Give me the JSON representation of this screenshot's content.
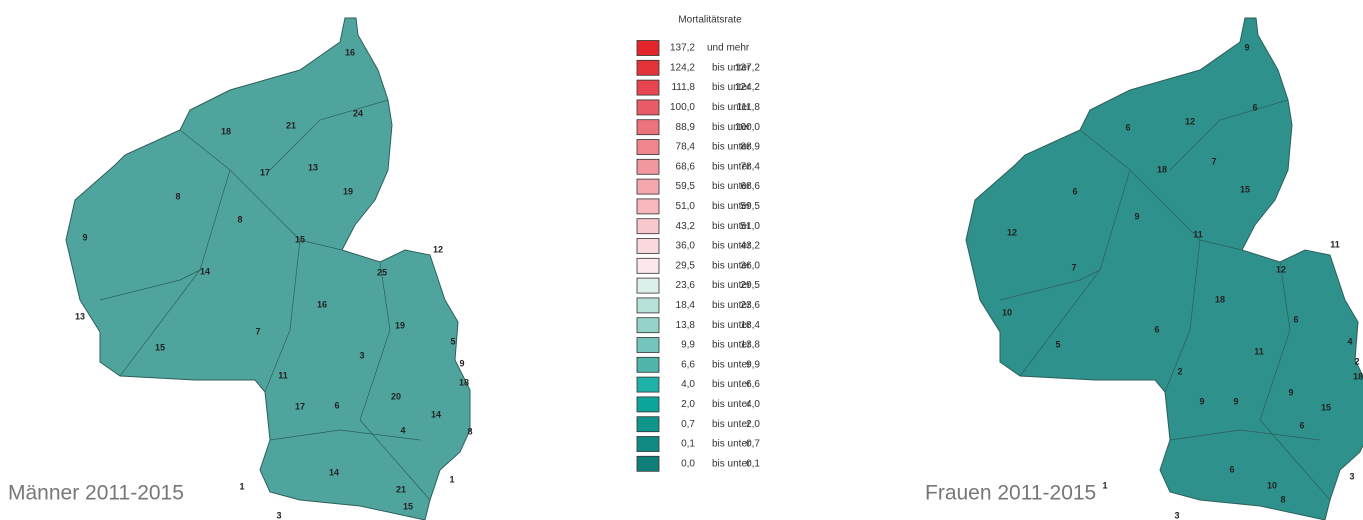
{
  "legend": {
    "title": "Mortalitätsrate",
    "classes": [
      {
        "from": "137,2",
        "label": "und mehr",
        "color": "#e3262a"
      },
      {
        "from": "124,2",
        "label": "bis unter",
        "to": "137,2",
        "color": "#e5333a"
      },
      {
        "from": "111,8",
        "label": "bis unter",
        "to": "124,2",
        "color": "#e74550"
      },
      {
        "from": "100,0",
        "label": "bis unter",
        "to": "111,8",
        "color": "#e95b66"
      },
      {
        "from": "88,9",
        "label": "bis unter",
        "to": "100,0",
        "color": "#ec727b"
      },
      {
        "from": "78,4",
        "label": "bis unter",
        "to": "88,9",
        "color": "#ef868e"
      },
      {
        "from": "68,6",
        "label": "bis unter",
        "to": "78,4",
        "color": "#f1979e"
      },
      {
        "from": "59,5",
        "label": "bis unter",
        "to": "68,6",
        "color": "#f4a8ae"
      },
      {
        "from": "51,0",
        "label": "bis unter",
        "to": "59,5",
        "color": "#f6b8bd"
      },
      {
        "from": "43,2",
        "label": "bis unter",
        "to": "51,0",
        "color": "#f8c8cc"
      },
      {
        "from": "36,0",
        "label": "bis unter",
        "to": "43,2",
        "color": "#fad9dc"
      },
      {
        "from": "29,5",
        "label": "bis unter",
        "to": "36,0",
        "color": "#fce8ea"
      },
      {
        "from": "23,6",
        "label": "bis unter",
        "to": "29,5",
        "color": "#dcefea"
      },
      {
        "from": "18,4",
        "label": "bis unter",
        "to": "23,6",
        "color": "#b8e1da"
      },
      {
        "from": "13,8",
        "label": "bis unter",
        "to": "18,4",
        "color": "#95d3ca"
      },
      {
        "from": "9,9",
        "label": "bis unter",
        "to": "13,8",
        "color": "#74c5bb"
      },
      {
        "from": "6,6",
        "label": "bis unter",
        "to": "9,9",
        "color": "#4fb5ab"
      },
      {
        "from": "4,0",
        "label": "bis unter",
        "to": "6,6",
        "color": "#1fb2a8"
      },
      {
        "from": "2,0",
        "label": "bis unter",
        "to": "4,0",
        "color": "#0ea59b"
      },
      {
        "from": "0,7",
        "label": "bis unter",
        "to": "2,0",
        "color": "#0e968d"
      },
      {
        "from": "0,1",
        "label": "bis unter",
        "to": "0,7",
        "color": "#0f8a82"
      },
      {
        "from": "0,0",
        "label": "bis unter",
        "to": "0,1",
        "color": "#117f79"
      }
    ]
  },
  "maps": [
    {
      "title": "Männer 2011-2015",
      "fill": "#4fa59e",
      "labels": [
        16,
        24,
        18,
        21,
        13,
        17,
        19,
        8,
        8,
        15,
        9,
        14,
        12,
        25,
        16,
        19,
        13,
        15,
        7,
        3,
        5,
        9,
        18,
        11,
        20,
        17,
        6,
        14,
        4,
        8,
        1,
        14,
        3,
        21,
        1,
        15
      ]
    },
    {
      "title": "Frauen 2011-2015",
      "fill": "#2e918b",
      "labels": [
        9,
        6,
        12,
        6,
        7,
        18,
        15,
        6,
        9,
        11,
        12,
        11,
        7,
        12,
        18,
        6,
        10,
        5,
        6,
        4,
        11,
        2,
        18,
        2,
        9,
        15,
        9,
        9,
        6,
        1,
        6,
        10,
        3,
        3,
        8
      ]
    }
  ]
}
